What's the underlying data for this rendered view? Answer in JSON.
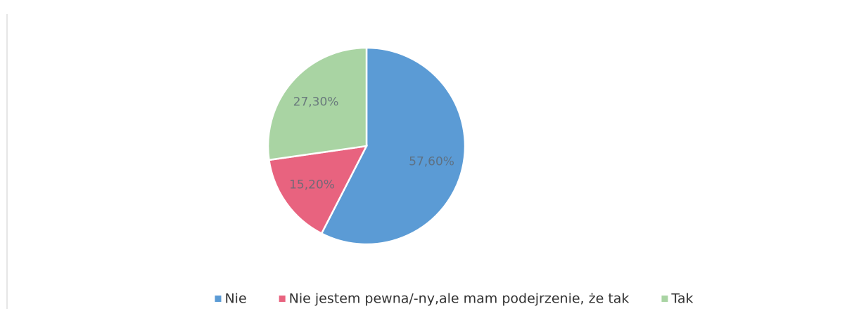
{
  "chart_data": {
    "type": "pie",
    "categories": [
      "Nie",
      "Nie jestem pewna/-ny,ale mam podejrzenie, że tak",
      "Tak"
    ],
    "values": [
      57.6,
      15.2,
      27.3
    ],
    "value_labels": [
      "57,60%",
      "15,20%",
      "27,30%"
    ],
    "colors": [
      "#5b9bd5",
      "#e8637f",
      "#a9d4a3"
    ],
    "legend": "bottom"
  }
}
